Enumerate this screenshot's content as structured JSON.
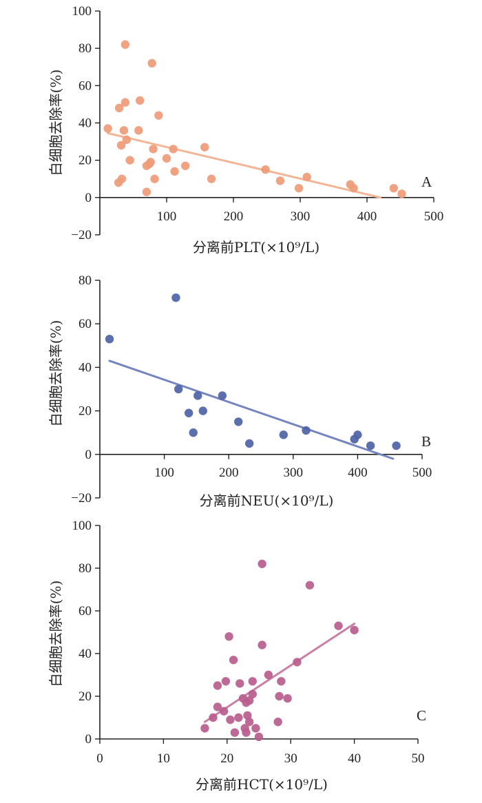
{
  "chart_data": [
    {
      "type": "scatter",
      "panel": "A",
      "color": "#EE9B78",
      "line_color": "#F3B596",
      "xlabel": "分离前PLT(×10⁹/L)",
      "ylabel": "白细胞去除率(%)",
      "xlim": [
        0,
        500
      ],
      "ylim": [
        -20,
        100
      ],
      "xticks": [
        100,
        200,
        300,
        400,
        500
      ],
      "yticks": [
        -20,
        0,
        20,
        40,
        60,
        80,
        100
      ],
      "ytick_labels": [
        "−20",
        "0",
        "20",
        "40",
        "60",
        "80",
        "100"
      ],
      "trend": {
        "x": [
          12,
          420
        ],
        "y": [
          34.5,
          0
        ]
      },
      "points": [
        [
          12,
          37
        ],
        [
          28,
          8
        ],
        [
          29,
          48
        ],
        [
          32,
          28
        ],
        [
          33,
          10
        ],
        [
          36,
          36
        ],
        [
          38,
          82
        ],
        [
          38,
          51
        ],
        [
          40,
          31
        ],
        [
          45,
          20
        ],
        [
          58,
          36
        ],
        [
          60,
          52
        ],
        [
          70,
          3
        ],
        [
          70,
          17
        ],
        [
          74,
          18
        ],
        [
          76,
          19
        ],
        [
          78,
          72
        ],
        [
          80,
          26
        ],
        [
          82,
          10
        ],
        [
          88,
          44
        ],
        [
          100,
          21
        ],
        [
          110,
          26
        ],
        [
          112,
          14
        ],
        [
          128,
          17
        ],
        [
          157,
          27
        ],
        [
          167,
          10
        ],
        [
          248,
          15
        ],
        [
          270,
          9
        ],
        [
          298,
          5
        ],
        [
          310,
          11
        ],
        [
          375,
          7
        ],
        [
          380,
          5
        ],
        [
          440,
          5
        ],
        [
          452,
          2
        ]
      ]
    },
    {
      "type": "scatter",
      "panel": "B",
      "color": "#4E63A6",
      "line_color": "#7484C0",
      "xlabel": "分离前NEU(×10⁹/L)",
      "ylabel": "白细胞去除率(%)",
      "xlim": [
        0,
        500
      ],
      "ylim": [
        -20,
        80
      ],
      "xticks": [
        100,
        200,
        300,
        400,
        500
      ],
      "yticks": [
        -20,
        0,
        20,
        40,
        60,
        80
      ],
      "ytick_labels": [
        "−20",
        "0",
        "20",
        "40",
        "60",
        "80"
      ],
      "trend": {
        "x": [
          15,
          455
        ],
        "y": [
          43,
          -2
        ]
      },
      "points": [
        [
          15,
          53
        ],
        [
          118,
          72
        ],
        [
          122,
          30
        ],
        [
          138,
          19
        ],
        [
          145,
          10
        ],
        [
          152,
          27
        ],
        [
          160,
          20
        ],
        [
          190,
          27
        ],
        [
          215,
          15
        ],
        [
          232,
          5
        ],
        [
          285,
          9
        ],
        [
          320,
          11
        ],
        [
          395,
          7
        ],
        [
          400,
          9
        ],
        [
          420,
          4
        ],
        [
          460,
          4
        ]
      ]
    },
    {
      "type": "scatter",
      "panel": "C",
      "color": "#B85D8D",
      "line_color": "#CA7FA7",
      "xlabel": "分离前HCT(×10⁹/L)",
      "ylabel": "白细胞去除率(%)",
      "xlim": [
        0,
        50
      ],
      "ylim": [
        0,
        100
      ],
      "xticks": [
        0,
        10,
        20,
        30,
        40,
        50
      ],
      "yticks": [
        0,
        20,
        40,
        60,
        80,
        100
      ],
      "ytick_labels": [
        "0",
        "20",
        "40",
        "60",
        "80",
        "100"
      ],
      "trend": {
        "x": [
          16.5,
          40
        ],
        "y": [
          8,
          54
        ]
      },
      "points": [
        [
          16.5,
          5
        ],
        [
          17.8,
          10
        ],
        [
          18.5,
          25
        ],
        [
          18.5,
          15
        ],
        [
          19.5,
          13
        ],
        [
          19.8,
          27
        ],
        [
          20.3,
          48
        ],
        [
          20.5,
          9
        ],
        [
          21,
          37
        ],
        [
          21.2,
          3
        ],
        [
          21.8,
          10
        ],
        [
          22,
          26
        ],
        [
          22.5,
          19
        ],
        [
          22.8,
          5
        ],
        [
          23,
          3
        ],
        [
          23,
          17
        ],
        [
          23.2,
          11
        ],
        [
          23.5,
          8
        ],
        [
          23.5,
          18
        ],
        [
          24,
          21
        ],
        [
          24,
          27
        ],
        [
          24.5,
          5
        ],
        [
          25,
          1
        ],
        [
          25.5,
          44
        ],
        [
          25.5,
          82
        ],
        [
          26.5,
          30
        ],
        [
          28.2,
          20
        ],
        [
          28,
          8
        ],
        [
          28.5,
          27
        ],
        [
          29.5,
          19
        ],
        [
          31,
          36
        ],
        [
          33,
          72
        ],
        [
          37.5,
          53
        ],
        [
          40,
          51
        ]
      ]
    }
  ]
}
